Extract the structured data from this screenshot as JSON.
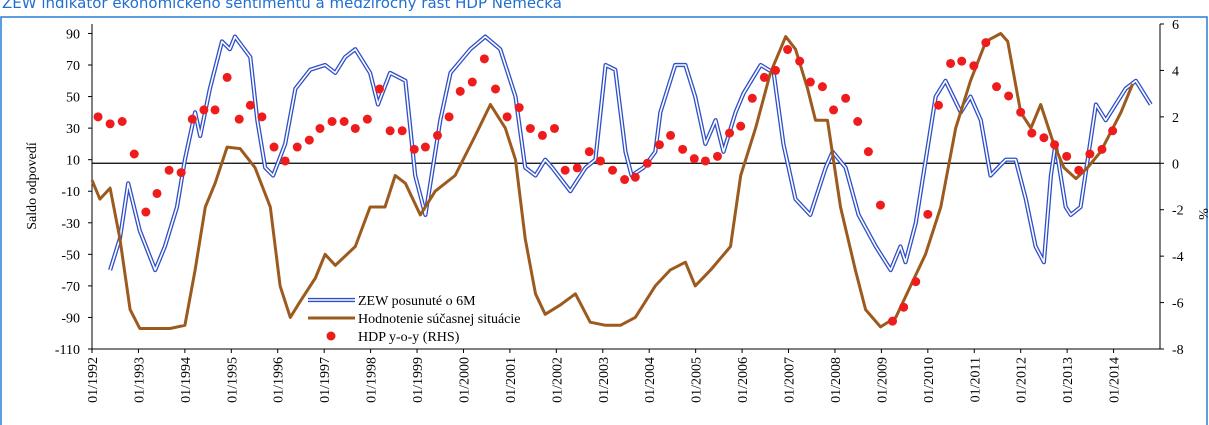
{
  "chart_data": {
    "type": "line",
    "title": "ZEW indikátor ekonomického sentimentu a medziročný rast HDP Nemecka",
    "ylabel": "Saldo odpovedí",
    "y2label": "%",
    "xlim": [
      1992,
      2015
    ],
    "ylim": [
      -110,
      96
    ],
    "y2lim": [
      -8,
      6
    ],
    "yticks": [
      -110,
      -90,
      -70,
      -50,
      -30,
      -10,
      10,
      30,
      50,
      70,
      90
    ],
    "y2ticks": [
      -8,
      -6,
      -4,
      -2,
      0,
      2,
      4,
      6
    ],
    "y2_refline": 0,
    "xticks": [
      {
        "value": 1992,
        "label": "01/1992"
      },
      {
        "value": 1993,
        "label": "01/1993"
      },
      {
        "value": 1994,
        "label": "01/1994"
      },
      {
        "value": 1995,
        "label": "01/1995"
      },
      {
        "value": 1996,
        "label": "01/1996"
      },
      {
        "value": 1997,
        "label": "01/1997"
      },
      {
        "value": 1998,
        "label": "01/1998"
      },
      {
        "value": 1999,
        "label": "01/1999"
      },
      {
        "value": 2000,
        "label": "01/2000"
      },
      {
        "value": 2001,
        "label": "01/2001"
      },
      {
        "value": 2002,
        "label": "01/2002"
      },
      {
        "value": 2003,
        "label": "01/2003"
      },
      {
        "value": 2004,
        "label": "01/2004"
      },
      {
        "value": 2005,
        "label": "01/2005"
      },
      {
        "value": 2006,
        "label": "01/2006"
      },
      {
        "value": 2007,
        "label": "01/2007"
      },
      {
        "value": 2008,
        "label": "01/2008"
      },
      {
        "value": 2009,
        "label": "01/2009"
      },
      {
        "value": 2010,
        "label": "01/2010"
      },
      {
        "value": 2011,
        "label": "01/2011"
      },
      {
        "value": 2012,
        "label": "01/2012"
      },
      {
        "value": 2013,
        "label": "01/2013"
      },
      {
        "value": 2014,
        "label": "01/2014"
      }
    ],
    "grid": false,
    "legend": "bottom-left",
    "series": [
      {
        "name": "ZEW posunuté o 6M",
        "color": "#2f4fc8",
        "kind": "double-line",
        "x": [
          1992.39,
          1992.6,
          1992.78,
          1993.03,
          1993.36,
          1993.57,
          1993.83,
          1994.0,
          1994.22,
          1994.33,
          1994.54,
          1994.8,
          1994.97,
          1995.08,
          1995.41,
          1995.56,
          1995.73,
          1995.9,
          1996.16,
          1996.38,
          1996.7,
          1997.02,
          1997.24,
          1997.45,
          1997.67,
          1997.99,
          1998.16,
          1998.42,
          1998.75,
          1998.96,
          1999.18,
          1999.5,
          1999.72,
          2000.15,
          2000.47,
          2000.79,
          2001.12,
          2001.33,
          2001.55,
          2001.76,
          2001.91,
          2002.3,
          2002.63,
          2002.84,
          2003.06,
          2003.27,
          2003.49,
          2003.62,
          2003.88,
          2004.13,
          2004.24,
          2004.56,
          2004.78,
          2004.99,
          2005.21,
          2005.43,
          2005.6,
          2005.86,
          2006.03,
          2006.4,
          2006.68,
          2006.89,
          2007.15,
          2007.47,
          2007.8,
          2007.95,
          2008.23,
          2008.51,
          2008.88,
          2009.2,
          2009.41,
          2009.52,
          2009.74,
          2010.17,
          2010.38,
          2010.71,
          2010.92,
          2011.14,
          2011.35,
          2011.68,
          2011.89,
          2012.11,
          2012.32,
          2012.5,
          2012.65,
          2012.75,
          2012.97,
          2013.08,
          2013.29,
          2013.62,
          2013.83,
          2014.26,
          2014.48,
          2014.8
        ],
        "values": [
          -60,
          -40,
          -5,
          -35,
          -60,
          -45,
          -20,
          10,
          40,
          25,
          55,
          85,
          80,
          88,
          75,
          35,
          5,
          0,
          20,
          55,
          67,
          70,
          65,
          75,
          80,
          65,
          45,
          65,
          60,
          0,
          -25,
          35,
          65,
          80,
          88,
          80,
          50,
          5,
          0,
          10,
          5,
          -10,
          5,
          10,
          70,
          67,
          15,
          0,
          5,
          15,
          40,
          70,
          70,
          50,
          20,
          35,
          15,
          40,
          52,
          70,
          65,
          20,
          -15,
          -25,
          5,
          15,
          5,
          -25,
          -45,
          -60,
          -45,
          -55,
          -30,
          50,
          60,
          40,
          50,
          35,
          0,
          10,
          10,
          -15,
          -45,
          -55,
          0,
          20,
          -20,
          -25,
          -20,
          45,
          35,
          55,
          60,
          45
        ]
      },
      {
        "name": "Hodnotenie súčasnej situácie",
        "color": "#9c5a1e",
        "kind": "line",
        "x": [
          1992.0,
          1992.17,
          1992.39,
          1992.6,
          1992.82,
          1993.03,
          1993.36,
          1993.68,
          1994.0,
          1994.22,
          1994.44,
          1994.65,
          1994.91,
          1995.19,
          1995.51,
          1995.84,
          1996.05,
          1996.27,
          1996.48,
          1996.81,
          1997.02,
          1997.24,
          1997.67,
          1997.99,
          1998.31,
          1998.53,
          1998.75,
          1999.07,
          1999.39,
          1999.82,
          2000.25,
          2000.58,
          2000.9,
          2001.12,
          2001.33,
          2001.55,
          2001.76,
          2002.09,
          2002.41,
          2002.73,
          2003.06,
          2003.38,
          2003.7,
          2004.13,
          2004.45,
          2004.78,
          2004.99,
          2005.32,
          2005.75,
          2005.97,
          2006.29,
          2006.61,
          2006.94,
          2007.15,
          2007.41,
          2007.58,
          2007.84,
          2008.12,
          2008.44,
          2008.66,
          2008.98,
          2009.31,
          2009.63,
          2009.95,
          2010.28,
          2010.6,
          2010.92,
          2011.25,
          2011.57,
          2011.72,
          2012.0,
          2012.22,
          2012.43,
          2012.71,
          2012.93,
          2013.19,
          2013.44,
          2013.72,
          2014.16,
          2014.41
        ],
        "values": [
          -3,
          -15,
          -8,
          -40,
          -85,
          -97,
          -97,
          -97,
          -95,
          -60,
          -20,
          -5,
          18,
          17,
          5,
          -20,
          -70,
          -90,
          -80,
          -65,
          -50,
          -57,
          -45,
          -20,
          -20,
          0,
          -5,
          -25,
          -10,
          0,
          25,
          45,
          30,
          10,
          -40,
          -75,
          -88,
          -82,
          -75,
          -93,
          -95,
          -95,
          -90,
          -70,
          -60,
          -55,
          -70,
          -60,
          -45,
          0,
          30,
          65,
          88,
          80,
          55,
          35,
          35,
          -20,
          -60,
          -85,
          -96,
          -90,
          -70,
          -50,
          -20,
          30,
          60,
          85,
          90,
          85,
          40,
          30,
          45,
          20,
          5,
          -2,
          5,
          15,
          40,
          58
        ]
      },
      {
        "name": "HDP y-o-y (RHS)",
        "color": "#ee1c1c",
        "kind": "scatter",
        "axis": "y2",
        "x": [
          1992.13,
          1992.39,
          1992.65,
          1992.91,
          1993.16,
          1993.4,
          1993.66,
          1993.92,
          1994.16,
          1994.41,
          1994.65,
          1994.91,
          1995.17,
          1995.41,
          1995.66,
          1995.92,
          1996.16,
          1996.42,
          1996.68,
          1996.91,
          1997.17,
          1997.43,
          1997.67,
          1997.93,
          1998.19,
          1998.42,
          1998.68,
          1998.94,
          1999.18,
          1999.44,
          1999.69,
          1999.93,
          2000.19,
          2000.45,
          2000.69,
          2000.94,
          2001.2,
          2001.44,
          2001.7,
          2001.96,
          2002.19,
          2002.45,
          2002.71,
          2002.95,
          2003.21,
          2003.47,
          2003.7,
          2003.96,
          2004.22,
          2004.46,
          2004.72,
          2004.97,
          2005.21,
          2005.47,
          2005.73,
          2005.97,
          2006.22,
          2006.48,
          2006.72,
          2006.98,
          2007.24,
          2007.47,
          2007.73,
          2007.97,
          2008.23,
          2008.49,
          2008.72,
          2008.98,
          2009.24,
          2009.48,
          2009.74,
          2010.0,
          2010.23,
          2010.49,
          2010.73,
          2010.99,
          2011.25,
          2011.48,
          2011.74,
          2012.0,
          2012.24,
          2012.5,
          2012.73,
          2012.99,
          2013.25,
          2013.49,
          2013.75,
          2013.98
        ],
        "values": [
          2.0,
          1.7,
          1.8,
          0.4,
          -2.1,
          -1.3,
          -0.3,
          -0.4,
          1.9,
          2.3,
          2.3,
          3.7,
          1.9,
          2.5,
          2.0,
          0.7,
          0.1,
          0.7,
          1.0,
          1.5,
          1.8,
          1.8,
          1.5,
          1.9,
          3.2,
          1.4,
          1.4,
          0.6,
          0.7,
          1.2,
          2.0,
          3.1,
          3.5,
          4.5,
          3.2,
          2.0,
          2.4,
          1.5,
          1.2,
          1.5,
          -0.3,
          -0.2,
          0.5,
          0.1,
          -0.3,
          -0.7,
          -0.6,
          0.0,
          0.8,
          1.2,
          0.6,
          0.2,
          0.1,
          0.3,
          1.3,
          1.6,
          2.8,
          3.7,
          4.0,
          4.9,
          4.4,
          3.5,
          3.3,
          2.3,
          2.8,
          1.8,
          0.5,
          -1.8,
          -6.8,
          -6.2,
          -5.1,
          -2.2,
          2.5,
          4.3,
          4.4,
          4.2,
          5.2,
          3.3,
          2.9,
          2.2,
          1.3,
          1.1,
          0.8,
          0.3,
          -0.3,
          0.4,
          0.6,
          1.4
        ]
      }
    ]
  }
}
